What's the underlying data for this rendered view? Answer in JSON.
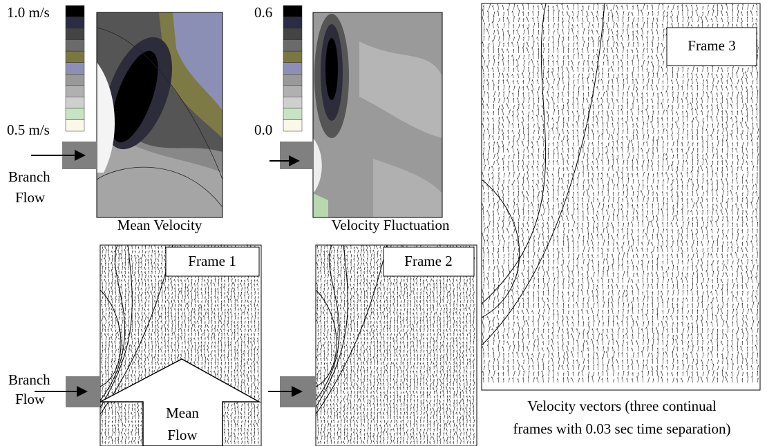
{
  "colorbars": [
    {
      "max": "1.0 m/s",
      "min": "0.5 m/s"
    },
    {
      "max": "0.6",
      "min": "0.0"
    }
  ],
  "branch_flow": [
    "Branch",
    "Flow"
  ],
  "maps": [
    {
      "caption": "Mean Velocity"
    },
    {
      "caption": "Velocity Fluctuation"
    }
  ],
  "frames": [
    "Frame 1",
    "Frame 2",
    "Frame 3"
  ],
  "mean_flow": [
    "Mean",
    "Flow"
  ],
  "caption": [
    "Velocity vectors (three continual",
    "frames with 0.03 sec time separation)"
  ]
}
